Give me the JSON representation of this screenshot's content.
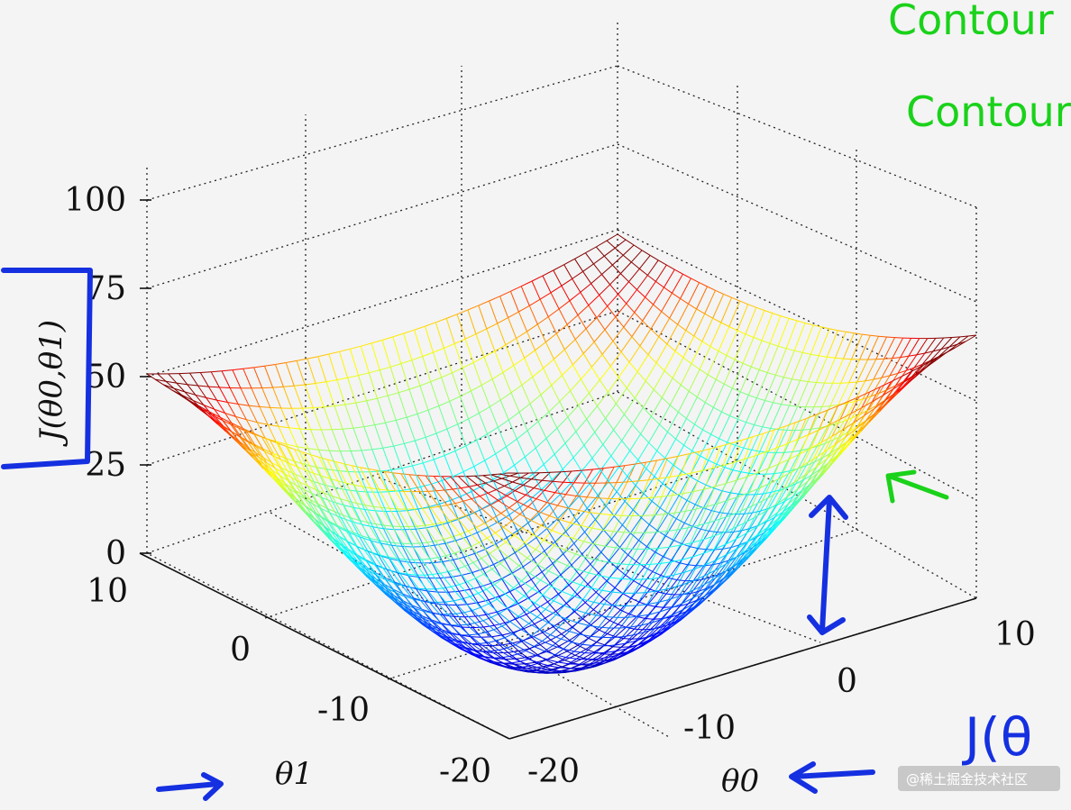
{
  "chart_data": {
    "type": "surface",
    "function": "J(θ0, θ1)",
    "zlabel": "J(θ0,θ1)",
    "xlabel": "θ0",
    "ylabel": "θ1",
    "z_ticks": [
      "0",
      "25",
      "50",
      "75",
      "100"
    ],
    "x_ticks": [
      "-20",
      "-10",
      "0",
      "10"
    ],
    "y_ticks": [
      "-20",
      "-10",
      "0",
      "10"
    ],
    "xlim": [
      -20,
      10
    ],
    "ylim": [
      -20,
      10
    ],
    "zlim": [
      0,
      100
    ],
    "grid": true,
    "colormap": "jet"
  },
  "annotations": {
    "green_line1": "Contour",
    "green_line2": "Contour",
    "blue_formula": "J(θ"
  },
  "watermark": "@稀土掘金技术社区",
  "colors": {
    "green_ink": "#1ad21a",
    "blue_ink": "#1530e0"
  }
}
